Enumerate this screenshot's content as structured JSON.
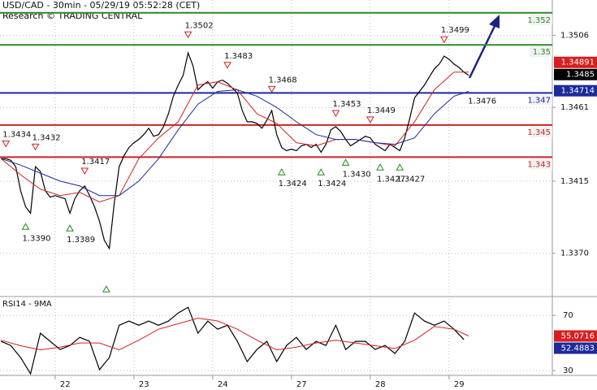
{
  "chart_data": [
    {
      "type": "line",
      "title": "USD/CAD - 30min - 05/29/19 05:52:28 (CET)",
      "subtitle": "Research © TRADING CENTRAL",
      "categories": [
        null,
        null,
        null,
        null,
        null,
        null,
        null,
        null,
        null,
        null,
        null,
        "22",
        null,
        null,
        null,
        null,
        null,
        null,
        null,
        null,
        null,
        null,
        null,
        null,
        null,
        null,
        null,
        "23",
        null,
        null,
        null,
        null,
        null,
        null,
        null,
        null,
        null,
        null,
        null,
        null,
        null,
        null,
        null,
        "24",
        null,
        null,
        null,
        null,
        null,
        null,
        null,
        null,
        null,
        null,
        null,
        null,
        null,
        null,
        null,
        "27",
        null,
        null,
        null,
        null,
        null,
        null,
        null,
        null,
        null,
        null,
        null,
        null,
        null,
        null,
        null,
        "28",
        null,
        null,
        null,
        null,
        null,
        null,
        null,
        null,
        null,
        null,
        null,
        null,
        null,
        null,
        null,
        "29",
        null,
        null,
        null,
        null
      ],
      "series": [
        {
          "color": "#000000",
          "values": [
            1.3429,
            1.3429,
            1.3428,
            1.3424,
            1.3409,
            1.3399,
            1.3395,
            1.3424,
            1.3421,
            1.3409,
            1.3405,
            1.3406,
            1.3405,
            1.3404,
            1.3395,
            1.3404,
            1.3409,
            1.3412,
            1.3406,
            1.3399,
            1.339,
            1.3378,
            1.3373,
            1.3401,
            1.3424,
            1.3431,
            1.3436,
            1.3439,
            1.3441,
            1.3444,
            1.3448,
            1.3443,
            1.3444,
            1.3449,
            1.3457,
            1.3468,
            1.3475,
            1.3481,
            1.3495,
            1.3487,
            1.3472,
            1.3475,
            1.3477,
            1.3473,
            1.3477,
            1.3478,
            1.3476,
            1.3473,
            1.347,
            1.3459,
            1.3452,
            1.3452,
            1.3451,
            1.3448,
            1.3453,
            1.3459,
            1.3444,
            1.3436,
            1.3434,
            1.3435,
            1.3434,
            1.3437,
            1.3438,
            1.3436,
            1.3438,
            1.3433,
            1.3438,
            1.3447,
            1.3449,
            1.3446,
            1.3441,
            1.3437,
            1.3439,
            1.3441,
            1.3443,
            1.3442,
            1.3438,
            1.3436,
            1.3434,
            1.3438,
            1.3436,
            1.3434,
            1.3442,
            1.3454,
            1.3467,
            1.3471,
            1.3475,
            1.348,
            1.3485,
            1.3488,
            1.3493,
            1.3491,
            1.3488,
            1.3486,
            1.3483,
            1.3481
          ]
        },
        {
          "color": "#d42020",
          "x": [
            0,
            4,
            8,
            12,
            16,
            20,
            24,
            28,
            32,
            36,
            40,
            44,
            48,
            52,
            56,
            60,
            64,
            68,
            72,
            76,
            80,
            84,
            88,
            92,
            95
          ],
          "values": [
            1.3429,
            1.3419,
            1.341,
            1.3406,
            1.3408,
            1.3402,
            1.3406,
            1.3429,
            1.3442,
            1.3452,
            1.3475,
            1.3477,
            1.3472,
            1.3457,
            1.3451,
            1.3439,
            1.3437,
            1.3441,
            1.3441,
            1.3439,
            1.3437,
            1.3452,
            1.3472,
            1.3483,
            1.3483
          ]
        },
        {
          "color": "#1c2a9a",
          "x": [
            0,
            4,
            8,
            12,
            16,
            20,
            24,
            28,
            32,
            36,
            40,
            44,
            48,
            52,
            56,
            60,
            64,
            68,
            72,
            76,
            80,
            84,
            88,
            92,
            95
          ],
          "values": [
            1.3429,
            1.3425,
            1.342,
            1.3415,
            1.3412,
            1.3406,
            1.3406,
            1.3415,
            1.3429,
            1.3447,
            1.3463,
            1.3471,
            1.3472,
            1.3468,
            1.3461,
            1.3452,
            1.3444,
            1.3441,
            1.3441,
            1.3439,
            1.3438,
            1.3442,
            1.3457,
            1.3468,
            1.3471
          ]
        }
      ],
      "ylim": [
        1.3343,
        1.3528
      ],
      "yticks": [
        {
          "value": 1.337,
          "label": "1.3370"
        },
        1.3415,
        1.3461,
        1.3506
      ],
      "grid": true,
      "levels": [
        {
          "value": 1.352,
          "color": "#2a8a2a"
        },
        {
          "value": 1.35,
          "color": "#2a8a2a"
        },
        {
          "value": 1.347,
          "color": "#1c2a9a"
        },
        {
          "value": 1.345,
          "color": "#cc2222"
        },
        {
          "value": 1.343,
          "color": "#cc2222"
        }
      ],
      "price_tags": [
        {
          "value": 1.34891,
          "color": "#d42020"
        },
        {
          "value": 1.3485,
          "color": "#000000"
        },
        {
          "value": 1.34714,
          "color": "#1c2a9a"
        }
      ],
      "annotations": [
        {
          "value": 1.3434,
          "x": 1,
          "marker": "down"
        },
        {
          "value": 1.3432,
          "x": 7,
          "marker": "down"
        },
        {
          "value": 1.3417,
          "x": 17,
          "marker": "down"
        },
        {
          "value": 1.3502,
          "x": 38,
          "marker": "down"
        },
        {
          "value": 1.3483,
          "x": 46,
          "marker": "down"
        },
        {
          "value": 1.3468,
          "x": 55,
          "marker": "down"
        },
        {
          "value": 1.3453,
          "x": 68,
          "marker": "down"
        },
        {
          "value": 1.3449,
          "x": 75,
          "marker": "down"
        },
        {
          "value": 1.3499,
          "x": 90,
          "marker": "down"
        },
        {
          "value": 1.3476,
          "x": 95.5,
          "marker": "none"
        },
        {
          "value": 1.339,
          "label": "1.3390",
          "x": 5,
          "marker": "up"
        },
        {
          "value": 1.3389,
          "x": 14,
          "marker": "up"
        },
        {
          "value": 1.3351,
          "x": 21.4,
          "marker": "up",
          "show_label": false
        },
        {
          "value": 1.3424,
          "x": 57,
          "marker": "up"
        },
        {
          "value": 1.3424,
          "x": 65,
          "marker": "up"
        },
        {
          "value": 1.343,
          "label": "1.3430",
          "x": 70,
          "marker": "up"
        },
        {
          "value": 1.3427,
          "x": 77,
          "marker": "up"
        },
        {
          "value": 1.3427,
          "x": 81,
          "marker": "up"
        }
      ]
    },
    {
      "type": "line",
      "title": "RSI14 - 9MA",
      "series": [
        {
          "color": "#000000",
          "x": [
            0,
            2,
            4,
            6,
            8,
            10,
            12,
            14,
            16,
            18,
            20,
            22,
            24,
            26,
            28,
            30,
            32,
            34,
            36,
            38,
            40,
            42,
            44,
            46,
            48,
            50,
            52,
            54,
            56,
            58,
            60,
            62,
            64,
            66,
            68,
            70,
            72,
            74,
            76,
            78,
            80,
            82,
            84,
            86,
            88,
            90,
            92,
            94
          ],
          "values": [
            51.2,
            48.2,
            39.4,
            27.6,
            57.1,
            51.2,
            45.3,
            48.2,
            54.1,
            51.2,
            30.6,
            39.4,
            62.9,
            65.9,
            62.9,
            65.9,
            62.9,
            65.9,
            71.8,
            75.9,
            57.1,
            65.9,
            60.0,
            62.9,
            51.2,
            36.5,
            45.3,
            51.2,
            36.5,
            48.2,
            54.1,
            45.3,
            51.2,
            48.2,
            62.9,
            45.3,
            51.2,
            51.2,
            45.3,
            48.2,
            42.4,
            51.2,
            71.8,
            65.9,
            62.9,
            65.9,
            60.0,
            52.5
          ]
        },
        {
          "color": "#d42020",
          "x": [
            0,
            4,
            8,
            12,
            16,
            20,
            24,
            28,
            32,
            36,
            40,
            44,
            48,
            52,
            56,
            60,
            64,
            68,
            72,
            76,
            80,
            84,
            88,
            92,
            95
          ],
          "values": [
            52,
            48,
            45,
            47,
            50,
            50,
            45,
            52,
            60,
            64,
            68,
            66,
            60,
            52,
            45,
            47,
            50,
            52,
            50,
            48,
            46,
            52,
            62,
            60,
            55.1
          ]
        }
      ],
      "ylim": [
        26.5,
        82.5
      ],
      "yticks": [
        30,
        70
      ],
      "grid": true,
      "value_tags": [
        {
          "value": 55.0716,
          "color": "#d42020"
        },
        {
          "value": 52.4883,
          "color": "#1c2a9a"
        }
      ]
    }
  ]
}
